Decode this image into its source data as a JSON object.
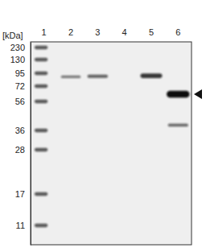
{
  "chart_data": {
    "type": "blot",
    "y_label": "[kDa]",
    "categories": [
      "1",
      "2",
      "3",
      "4",
      "5",
      "6"
    ],
    "log": "y",
    "ylim": [
      8.5,
      300
    ],
    "yticks": [
      230,
      130,
      95,
      72,
      56,
      36,
      28,
      17,
      11
    ],
    "bands": [
      {
        "lane": "1",
        "y": 230,
        "intensity": 0.55
      },
      {
        "lane": "1",
        "y": 130,
        "intensity": 0.55
      },
      {
        "lane": "1",
        "y": 95,
        "intensity": 0.55
      },
      {
        "lane": "1",
        "y": 72,
        "intensity": 0.55
      },
      {
        "lane": "1",
        "y": 56,
        "intensity": 0.55
      },
      {
        "lane": "1",
        "y": 36,
        "intensity": 0.55
      },
      {
        "lane": "1",
        "y": 28,
        "intensity": 0.55
      },
      {
        "lane": "1",
        "y": 17,
        "intensity": 0.55
      },
      {
        "lane": "1",
        "y": 11,
        "intensity": 0.55
      },
      {
        "lane": "2",
        "y": 88,
        "intensity": 0.35
      },
      {
        "lane": "3",
        "y": 89,
        "intensity": 0.5
      },
      {
        "lane": "5",
        "y": 90,
        "intensity": 0.75
      },
      {
        "lane": "6",
        "y": 63,
        "intensity": 1.0
      },
      {
        "lane": "6",
        "y": 39,
        "intensity": 0.45
      }
    ]
  }
}
